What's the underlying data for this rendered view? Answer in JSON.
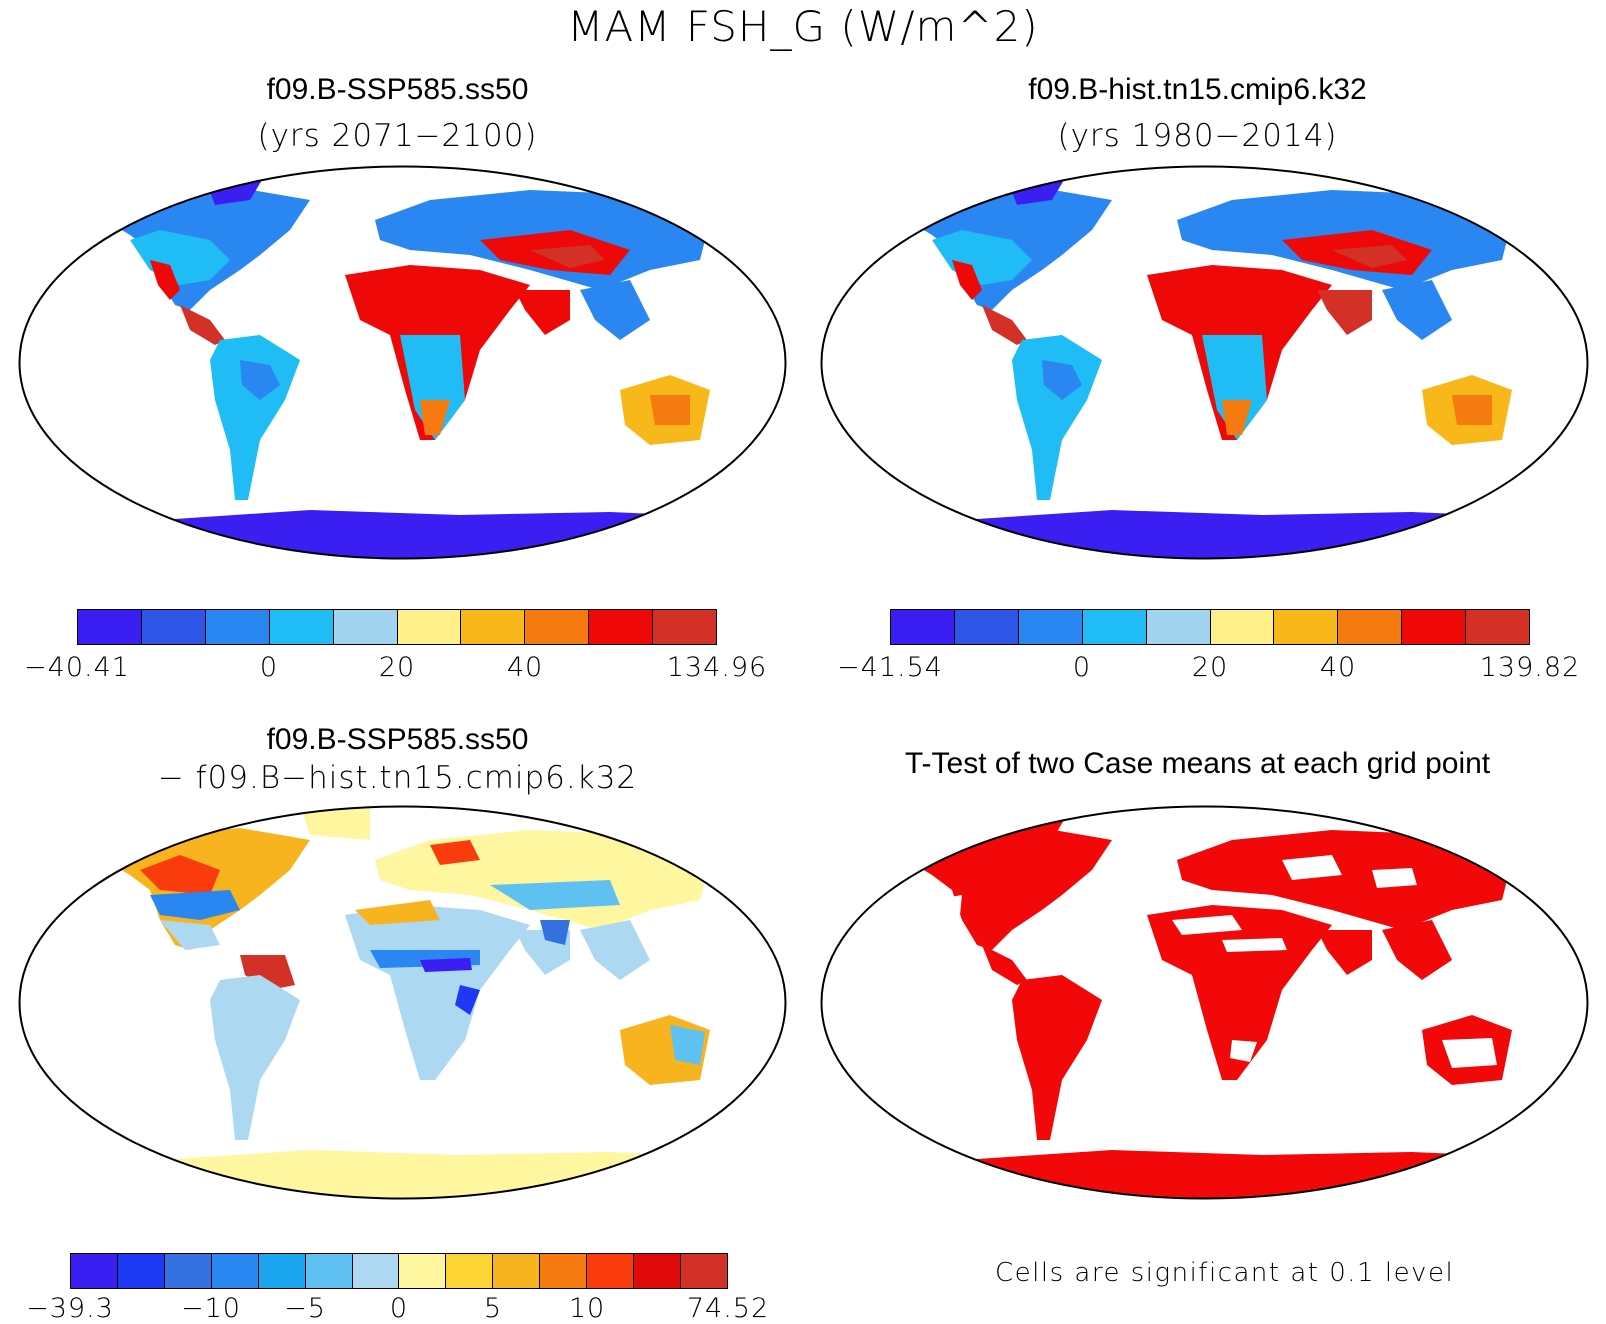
{
  "figure_title": "MAM FSH_G (W/m^2)",
  "panels": [
    {
      "title": "f09.B-SSP585.ss50",
      "subtitle": "(yrs 2071−2100)",
      "colorbar": {
        "colors": [
          "#3b1ef2",
          "#2f55e6",
          "#2a86f0",
          "#1fbcf5",
          "#a2d3ef",
          "#fff08a",
          "#f9b81a",
          "#f57a10",
          "#ee0808",
          "#d33027"
        ],
        "tick_labels": [
          "−40.41",
          "0",
          "20",
          "40",
          "134.96"
        ]
      }
    },
    {
      "title": "f09.B-hist.tn15.cmip6.k32",
      "subtitle": "(yrs 1980−2014)",
      "colorbar": {
        "colors": [
          "#3b1ef2",
          "#2f55e6",
          "#2a86f0",
          "#1fbcf5",
          "#a2d3ef",
          "#fff08a",
          "#f9b81a",
          "#f57a10",
          "#ee0808",
          "#d33027"
        ],
        "tick_labels": [
          "−41.54",
          "0",
          "20",
          "40",
          "139.82"
        ]
      }
    },
    {
      "title": "f09.B-SSP585.ss50",
      "subtitle": "− f09.B−hist.tn15.cmip6.k32",
      "colorbar": {
        "colors": [
          "#3b1ef2",
          "#1e39f4",
          "#3372e0",
          "#2a86f0",
          "#1aa6ee",
          "#5fc1f2",
          "#acd8f2",
          "#fff6a0",
          "#fcd535",
          "#f7b41e",
          "#f57a10",
          "#fa3b0c",
          "#e00a0a",
          "#d33027"
        ],
        "tick_labels": [
          "−39.3",
          "−10",
          "−5",
          "0",
          "5",
          "10",
          "74.52"
        ]
      }
    },
    {
      "title": "T-Test of two Case means at each grid point",
      "note": "Cells are significant at 0.1 level",
      "significant_color": "#f20808"
    }
  ]
}
